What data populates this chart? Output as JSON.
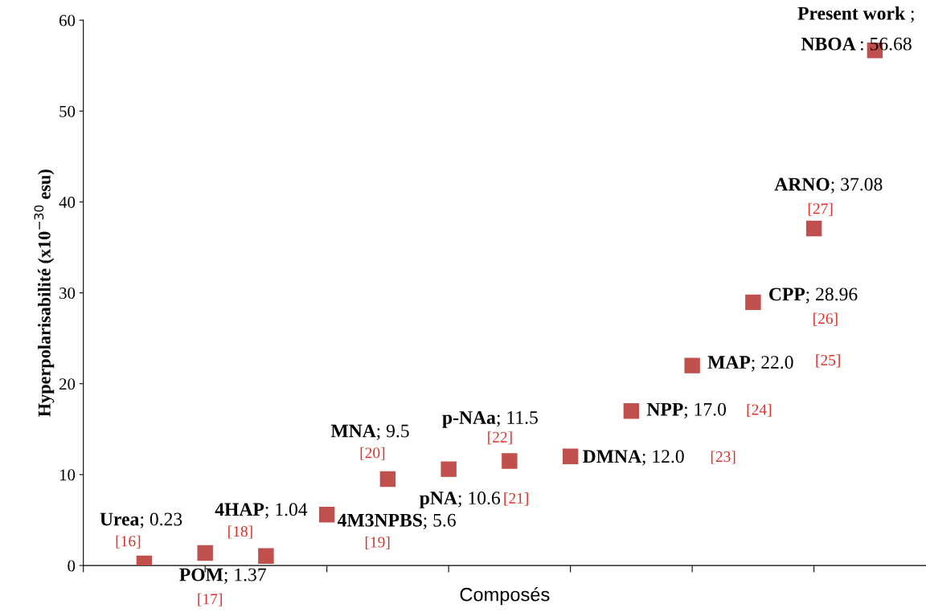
{
  "chart_data": {
    "type": "scatter",
    "xlabel": "Composés",
    "ylabel": "Hyperpolarisabilité (x10$^{−30}$ esu)",
    "categories": [
      null,
      null,
      null,
      null,
      null,
      null,
      null,
      null,
      null,
      null,
      null,
      null,
      null
    ],
    "series": [
      {
        "color": "#c0504d",
        "values": [
          0.23,
          1.37,
          1.04,
          5.6,
          9.5,
          10.6,
          11.5,
          12.0,
          17.0,
          22.0,
          28.96,
          37.08,
          56.68
        ],
        "value_labels": [
          "Urea; 0.23",
          "POM; 1.37",
          "4HAP; 1.04",
          "4M3NPBS; 5.6",
          "MNA; 9.5",
          "pNA; 10.6",
          "p-NAa; 11.5",
          "DMNA; 12.0",
          "NPP; 17.0",
          "MAP; 22.0",
          "CPP; 28.96",
          "ARNO; 37.08",
          "Present work ;\nNBOA : 56.68"
        ]
      }
    ],
    "annotations": [
      "[16]",
      "[17]",
      "[18]",
      "[19]",
      "[20]",
      "[21]",
      "[22]",
      "[23]",
      "[24]",
      "[25]",
      "[26]",
      "[27]"
    ],
    "ylim": [
      0,
      60
    ],
    "yticks": [
      0,
      10,
      20,
      30,
      40,
      50,
      60
    ],
    "grid": false,
    "legend": false,
    "marker": "square"
  }
}
